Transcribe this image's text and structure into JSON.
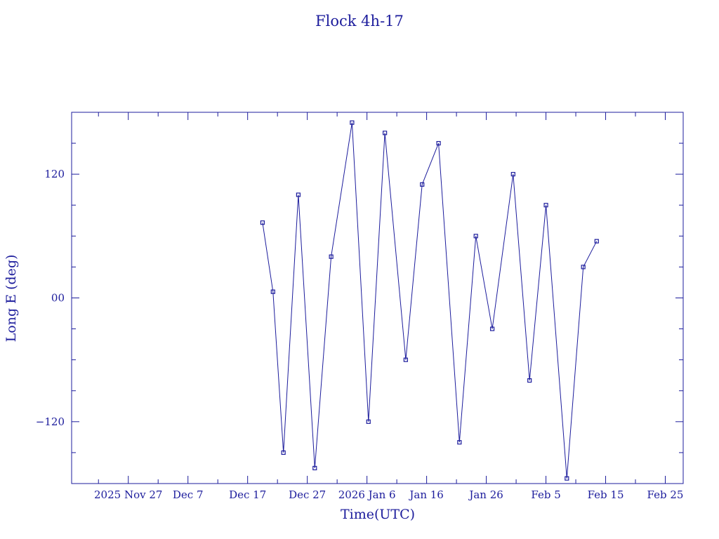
{
  "chart_data": {
    "type": "line",
    "title": "Flock 4h-17",
    "xlabel": "Time(UTC)",
    "ylabel": "Long E (deg)",
    "x_tick_labels": [
      "2025 Nov 27",
      "Dec  7",
      "Dec 17",
      "Dec 27",
      "2026 Jan  6",
      "Jan 16",
      "Jan 26",
      "Feb  5",
      "Feb 15",
      "Feb 25"
    ],
    "x_tick_dates": [
      "2025-11-27",
      "2025-12-07",
      "2025-12-17",
      "2025-12-27",
      "2026-01-06",
      "2026-01-16",
      "2026-01-26",
      "2026-02-05",
      "2026-02-15",
      "2026-02-25"
    ],
    "xlim": [
      "2025-11-17T12:00",
      "2026-02-28T00:00"
    ],
    "y_tick_labels": [
      "120",
      "00",
      "−120"
    ],
    "y_tick_values": [
      120,
      0,
      -120
    ],
    "ylim": [
      -180,
      180
    ],
    "grid": false,
    "marker": "open-square",
    "color": "#1c1c9c",
    "series": [
      {
        "x": [
          "2025-12-19T12:00",
          "2025-12-21T06:00",
          "2025-12-23T00:00",
          "2025-12-25T12:00",
          "2025-12-28T06:00",
          "2025-12-31T00:00",
          "2026-01-03T12:00",
          "2026-01-06T06:00",
          "2026-01-09T00:00",
          "2026-01-12T12:00",
          "2026-01-15T06:00",
          "2026-01-18T00:00",
          "2026-01-21T12:00",
          "2026-01-24T06:00",
          "2026-01-27T00:00",
          "2026-01-30T12:00",
          "2026-02-02T06:00",
          "2026-02-05T00:00",
          "2026-02-08T12:00",
          "2026-02-11T06:00",
          "2026-02-13T12:00"
        ],
        "y": [
          73,
          6,
          -150,
          100,
          -165,
          40,
          170,
          -120,
          160,
          -60,
          110,
          150,
          -140,
          60,
          -30,
          120,
          -80,
          90,
          -175,
          30,
          55
        ]
      }
    ]
  }
}
